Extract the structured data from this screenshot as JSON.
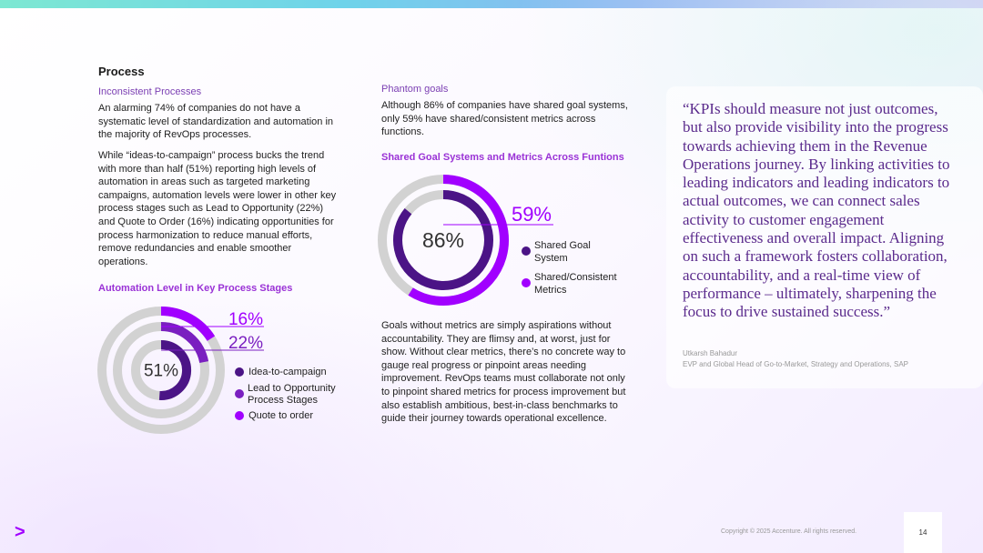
{
  "section": {
    "title": "Process"
  },
  "left": {
    "subtitle": "Inconsistent Processes",
    "p1": "An alarming 74% of companies do not have a systematic level of standardization and automation in the majority of RevOps processes.",
    "p2": "While “ideas-to-campaign” process bucks the trend with more than half (51%) reporting high levels of automation in areas such as targeted marketing campaigns, automation levels were lower in other key process stages such as Lead to Opportunity (22%) and Quote to Order (16%) indicating opportunities for process harmonization to reduce manual efforts, remove redundancies and enable smoother operations.",
    "chart_title": "Automation Level in Key Process Stages"
  },
  "middle": {
    "subtitle": "Phantom goals",
    "p1": "Although 86% of companies have shared goal systems, only 59% have shared/consistent metrics across functions.",
    "chart_title": "Shared Goal Systems and Metrics Across Funtions",
    "p2": "Goals without metrics are simply aspirations without accountability. They are flimsy and, at worst, just for show. Without clear metrics, there’s no concrete way to gauge real progress or pinpoint areas needing improvement.  RevOps teams must collaborate not only to pinpoint shared metrics for process improvement but also establish ambitious, best-in-class benchmarks to guide their journey towards operational excellence."
  },
  "quote": {
    "text": "“KPIs should measure not just outcomes, but also provide visibility into the progress towards achieving them in the Revenue Operations journey. By linking activities to leading indicators and leading indicators to actual outcomes, we can connect sales activity to customer engagement effectiveness and overall impact. Aligning on such a framework fosters collaboration, accountability, and a real-time view of performance – ultimately, sharpening the focus to drive sustained success.”",
    "author": "Utkarsh Bahadur",
    "role": "EVP and Global Head of Go-to-Market, Strategy and Operations, SAP"
  },
  "footer": {
    "copyright": "Copyright © 2025 Accenture. All rights reserved.",
    "page": "14",
    "logo": ">"
  },
  "chart_data": [
    {
      "type": "pie",
      "subtype": "radial-donut",
      "title": "Automation Level in Key Process Stages",
      "series": [
        {
          "name": "Idea-to-campaign",
          "value": 51,
          "label": "51%",
          "color": "#4b1486"
        },
        {
          "name": "Lead to Opportunity Process Stages",
          "value": 22,
          "label": "22%",
          "color": "#7a1fc0"
        },
        {
          "name": "Quote to order",
          "value": 16,
          "label": "16%",
          "color": "#a100ff"
        }
      ],
      "track_color": "#d2d2d2",
      "max": 100
    },
    {
      "type": "pie",
      "subtype": "radial-donut",
      "title": "Shared Goal Systems and Metrics Across Funtions",
      "series": [
        {
          "name": "Shared Goal System",
          "value": 86,
          "label": "86%",
          "color": "#4b1486"
        },
        {
          "name": "Shared/Consistent Metrics",
          "value": 59,
          "label": "59%",
          "color": "#a100ff"
        }
      ],
      "track_color": "#d2d2d2",
      "max": 100
    }
  ]
}
